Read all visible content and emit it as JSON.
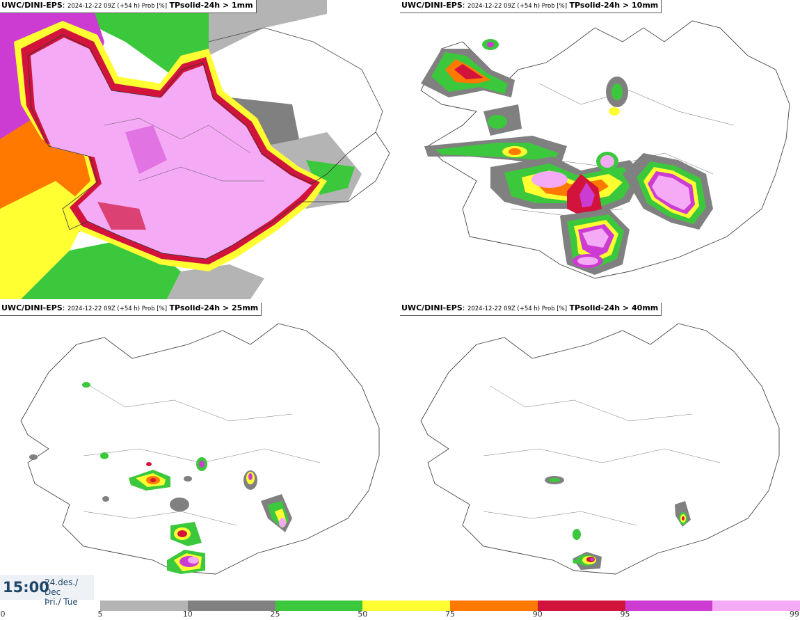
{
  "panels": [
    {
      "source": "UWC/DINI-EPS",
      "meta": "2024-12-22 09Z (+54 h) Prob [%]",
      "field": "TPsolid-24h > 1mm"
    },
    {
      "source": "UWC/DINI-EPS",
      "meta": "2024-12-22 09Z (+54 h) Prob [%]",
      "field": "TPsolid-24h > 10mm"
    },
    {
      "source": "UWC/DINI-EPS",
      "meta": "2024-12-22 09Z (+54 h) Prob [%]",
      "field": "TPsolid-24h > 25mm"
    },
    {
      "source": "UWC/DINI-EPS",
      "meta": "2024-12-22 09Z (+54 h) Prob [%]",
      "field": "TPsolid-24h > 40mm"
    }
  ],
  "valid_time": {
    "time": "15:00",
    "date_line1": "24.des./ Dec",
    "date_line2": "Þri./ Tue"
  },
  "legend": {
    "ticks": [
      "0",
      "5",
      "10",
      "25",
      "50",
      "75",
      "90",
      "95",
      "99"
    ],
    "bins": [
      {
        "from": 5,
        "to": 10,
        "color": "#b4b4b4"
      },
      {
        "from": 10,
        "to": 25,
        "color": "#808080"
      },
      {
        "from": 25,
        "to": 50,
        "color": "#3cc83c"
      },
      {
        "from": 50,
        "to": 75,
        "color": "#ffff32"
      },
      {
        "from": 75,
        "to": 90,
        "color": "#ff7800"
      },
      {
        "from": 90,
        "to": 95,
        "color": "#d2143c"
      },
      {
        "from": 95,
        "to": 99,
        "color": "#cd3cd2"
      },
      {
        "from": 99,
        "to": 100,
        "color": "#f5aaf5"
      }
    ]
  }
}
